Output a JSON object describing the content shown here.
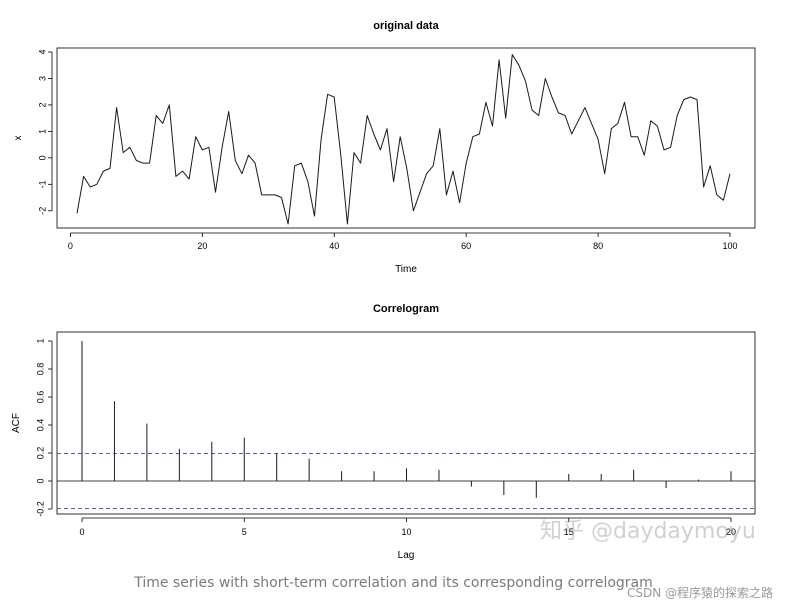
{
  "chart_data": [
    {
      "type": "line",
      "title": "original data",
      "xlabel": "Time",
      "ylabel": "x",
      "xlim": [
        1,
        100
      ],
      "ylim": [
        -2.5,
        4
      ],
      "xticks": [
        0,
        20,
        40,
        60,
        80,
        100
      ],
      "yticks": [
        -2,
        -1,
        0,
        1,
        2,
        3,
        4
      ],
      "grid": false,
      "x": [
        1,
        2,
        3,
        4,
        5,
        6,
        7,
        8,
        9,
        10,
        11,
        12,
        13,
        14,
        15,
        16,
        17,
        18,
        19,
        20,
        21,
        22,
        23,
        24,
        25,
        26,
        27,
        28,
        29,
        30,
        31,
        32,
        33,
        34,
        35,
        36,
        37,
        38,
        39,
        40,
        41,
        42,
        43,
        44,
        45,
        46,
        47,
        48,
        49,
        50,
        51,
        52,
        53,
        54,
        55,
        56,
        57,
        58,
        59,
        60,
        61,
        62,
        63,
        64,
        65,
        66,
        67,
        68,
        69,
        70,
        71,
        72,
        73,
        74,
        75,
        76,
        77,
        78,
        79,
        80,
        81,
        82,
        83,
        84,
        85,
        86,
        87,
        88,
        89,
        90,
        91,
        92,
        93,
        94,
        95,
        96,
        97,
        98,
        99,
        100
      ],
      "values": [
        -2.1,
        -0.7,
        -1.1,
        -1.0,
        -0.5,
        -0.4,
        1.9,
        0.2,
        0.4,
        -0.1,
        -0.2,
        -0.2,
        1.6,
        1.3,
        2.0,
        -0.7,
        -0.5,
        -0.8,
        0.8,
        0.3,
        0.4,
        -1.3,
        0.4,
        1.75,
        -0.1,
        -0.6,
        0.1,
        -0.2,
        -1.4,
        -1.4,
        -1.4,
        -1.5,
        -2.5,
        -0.3,
        -0.2,
        -0.9,
        -2.2,
        0.7,
        2.4,
        2.3,
        0.1,
        -2.5,
        0.2,
        -0.2,
        1.6,
        0.9,
        0.3,
        1.1,
        -0.9,
        0.8,
        -0.4,
        -2.0,
        -1.3,
        -0.6,
        -0.3,
        1.1,
        -1.4,
        -0.5,
        -1.7,
        -0.2,
        0.8,
        0.9,
        2.1,
        1.2,
        3.7,
        1.5,
        3.9,
        3.5,
        2.9,
        1.8,
        1.6,
        3.0,
        2.3,
        1.7,
        1.6,
        0.9,
        1.4,
        1.9,
        1.3,
        0.7,
        -0.6,
        1.1,
        1.3,
        2.1,
        0.8,
        0.8,
        0.1,
        1.4,
        1.2,
        0.3,
        0.4,
        1.6,
        2.2,
        2.3,
        2.2,
        -1.1,
        -0.3,
        -1.4,
        -1.6,
        -0.6
      ]
    },
    {
      "type": "bar",
      "title": "Correlogram",
      "xlabel": "Lag",
      "ylabel": "ACF",
      "xlim": [
        0,
        20
      ],
      "ylim": [
        -0.2,
        1.0
      ],
      "xticks": [
        0,
        5,
        10,
        15,
        20
      ],
      "yticks": [
        -0.2,
        0.0,
        0.2,
        0.4,
        0.6,
        0.8,
        1.0
      ],
      "grid": false,
      "x": [
        0,
        1,
        2,
        3,
        4,
        5,
        6,
        7,
        8,
        9,
        10,
        11,
        12,
        13,
        14,
        15,
        16,
        17,
        18,
        19,
        20
      ],
      "values": [
        1.0,
        0.57,
        0.41,
        0.23,
        0.28,
        0.31,
        0.2,
        0.16,
        0.07,
        0.07,
        0.09,
        0.08,
        -0.04,
        -0.1,
        -0.12,
        0.05,
        0.05,
        0.08,
        -0.05,
        0.01,
        0.07
      ],
      "confidence_bounds": [
        -0.196,
        0.196
      ],
      "bound_color": "#3b4fa6"
    }
  ],
  "caption": "Time series with short-term correlation and its corresponding correlogram",
  "watermarks": {
    "zhihu": "知乎 @daydaymoyu",
    "csdn": "CSDN @程序猿的探索之路"
  }
}
